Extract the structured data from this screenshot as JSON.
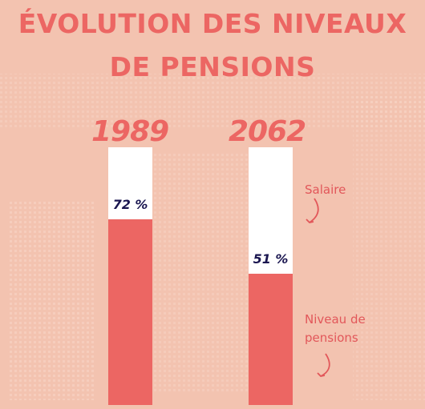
{
  "title": {
    "line1": "ÉVOLUTION DES NIVEAUX",
    "line2": "DE PENSIONS"
  },
  "annotations": {
    "salaire": "Salaire",
    "niveau_line1": "Niveau de",
    "niveau_line2": "pensions"
  },
  "colors": {
    "background": "#f3c3b0",
    "accent": "#ec6663",
    "bar_remainder": "#ffffff",
    "label": "#1a1650"
  },
  "chart_data": {
    "type": "bar",
    "title": "ÉVOLUTION DES NIVEAUX DE PENSIONS",
    "categories": [
      "1989",
      "2062"
    ],
    "series": [
      {
        "name": "Niveau de pensions",
        "values": [
          72,
          51
        ],
        "unit": "%"
      },
      {
        "name": "Salaire",
        "values": [
          100,
          100
        ],
        "unit": "%"
      }
    ],
    "data_labels": [
      "72 %",
      "51 %"
    ],
    "ylim": [
      0,
      100
    ],
    "grid": false
  }
}
